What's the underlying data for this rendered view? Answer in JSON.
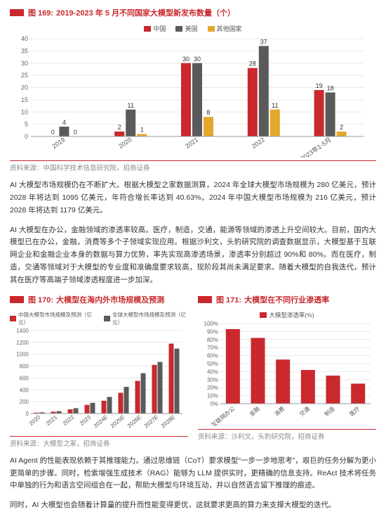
{
  "colors": {
    "accent": "#c9282d",
    "series_red": "#c9282d",
    "series_gray": "#5a5a5a",
    "series_yellow": "#e3a82b",
    "axis": "#999999",
    "grid": "#e8e8e8",
    "text": "#333333",
    "label_dark": "#333333"
  },
  "fig169": {
    "label": "图 169:",
    "title": "2019-2023 年 5 月不同国家大模型新发布数量（个）",
    "legend": [
      "中国",
      "美国",
      "其他国家"
    ],
    "categories": [
      "2019",
      "2020",
      "2021",
      "2022",
      "2023年1-5月"
    ],
    "series": [
      {
        "name": "中国",
        "color": "#c9282d",
        "values": [
          0,
          2,
          30,
          28,
          19
        ]
      },
      {
        "name": "美国",
        "color": "#5a5a5a",
        "values": [
          4,
          11,
          30,
          37,
          18
        ]
      },
      {
        "name": "其他国家",
        "color": "#e3a82b",
        "values": [
          0,
          1,
          8,
          11,
          2
        ]
      }
    ],
    "ylim": [
      0,
      40
    ],
    "ystep": 5,
    "source_prefix": "资料来源：",
    "source": "中国科学技术信息研究院，招商证券"
  },
  "para1": "AI 大模型市场规模仍在不断扩大。根据大模型之家数据测算，2024 年全球大模型市场规模为 280 亿美元，预计 2028 年将达到 1095 亿美元，年符合增长率达到 40.63%。2024 年中国大模型市场规模为 216 亿美元，预计 2028 年将达到 1179 亿美元。",
  "para2": "AI 大模型在办公，金融领域的渗透率较高。医疗，制造，交通，能源等领域的渗透上升空间较大。目前，国内大模型已在办公，金融，消费等多个子领域实现应用。根据沙利文，头豹研究院的调查数据显示，大模型基于互联网企业和金融企业本身的数据与算力优势，率先实现高渗透场景，渗透率分别超过 90%和 80%。而在医疗，制造，交通等领域对于大模型的专业度和准确度要求较高，现阶段其尚未满足要求。随着大模型的自我迭代，预计其在医疗等高端子领域渗透程度进一步加深。",
  "fig170": {
    "label": "图 170:",
    "title": "大模型在海内外市场规模及预测",
    "legend": [
      "中国大模型市场规模及预测（亿元）",
      "全球大模型市场规模及预测（亿元）"
    ],
    "categories": [
      "2020",
      "2021",
      "2022",
      "2023",
      "2024E",
      "2025E",
      "2026E",
      "2027E",
      "2028E"
    ],
    "series": [
      {
        "name": "cn",
        "color": "#c9282d",
        "values": [
          15,
          30,
          70,
          147,
          216,
          350,
          550,
          820,
          1179
        ]
      },
      {
        "name": "global",
        "color": "#5a5a5a",
        "values": [
          20,
          40,
          90,
          180,
          280,
          450,
          680,
          870,
          1095
        ]
      }
    ],
    "ylim": [
      0,
      1400
    ],
    "ystep": 200,
    "source_prefix": "资料来源：",
    "source": "大模型之家，招商证券"
  },
  "fig171": {
    "label": "图 171:",
    "title": "大模型在不同行业渗透率",
    "legend": [
      "大模型渗透率(%)"
    ],
    "categories": [
      "互联网办公",
      "金融",
      "消费",
      "交通",
      "制造",
      "医疗"
    ],
    "values": [
      93,
      82,
      55,
      42,
      35,
      25
    ],
    "color": "#c9282d",
    "ylim": [
      0,
      100
    ],
    "ystep": 10,
    "source_prefix": "资料来源：",
    "source": "沙利文，头豹研究院，招商证券"
  },
  "para3": "AI Agent 的性能表现依赖于其推理能力。通过思维链（CoT）要求模型“一步一步地思考”，艰巨的任务分解为更小更简单的步骤。同时，检索增强生成技术（RAG）能够为 LLM 提供实时，更精确的信息支持。ReAct 技术将任务中单独的行为和语言空间组合在一起，帮助大模型与环境互动，并以自然语言留下推理的痕迹。",
  "para4": "同时，AI 大模型也会随着计算量的提升而性能变得更优，这就要求更高的算力来支撑大模型的迭代。"
}
